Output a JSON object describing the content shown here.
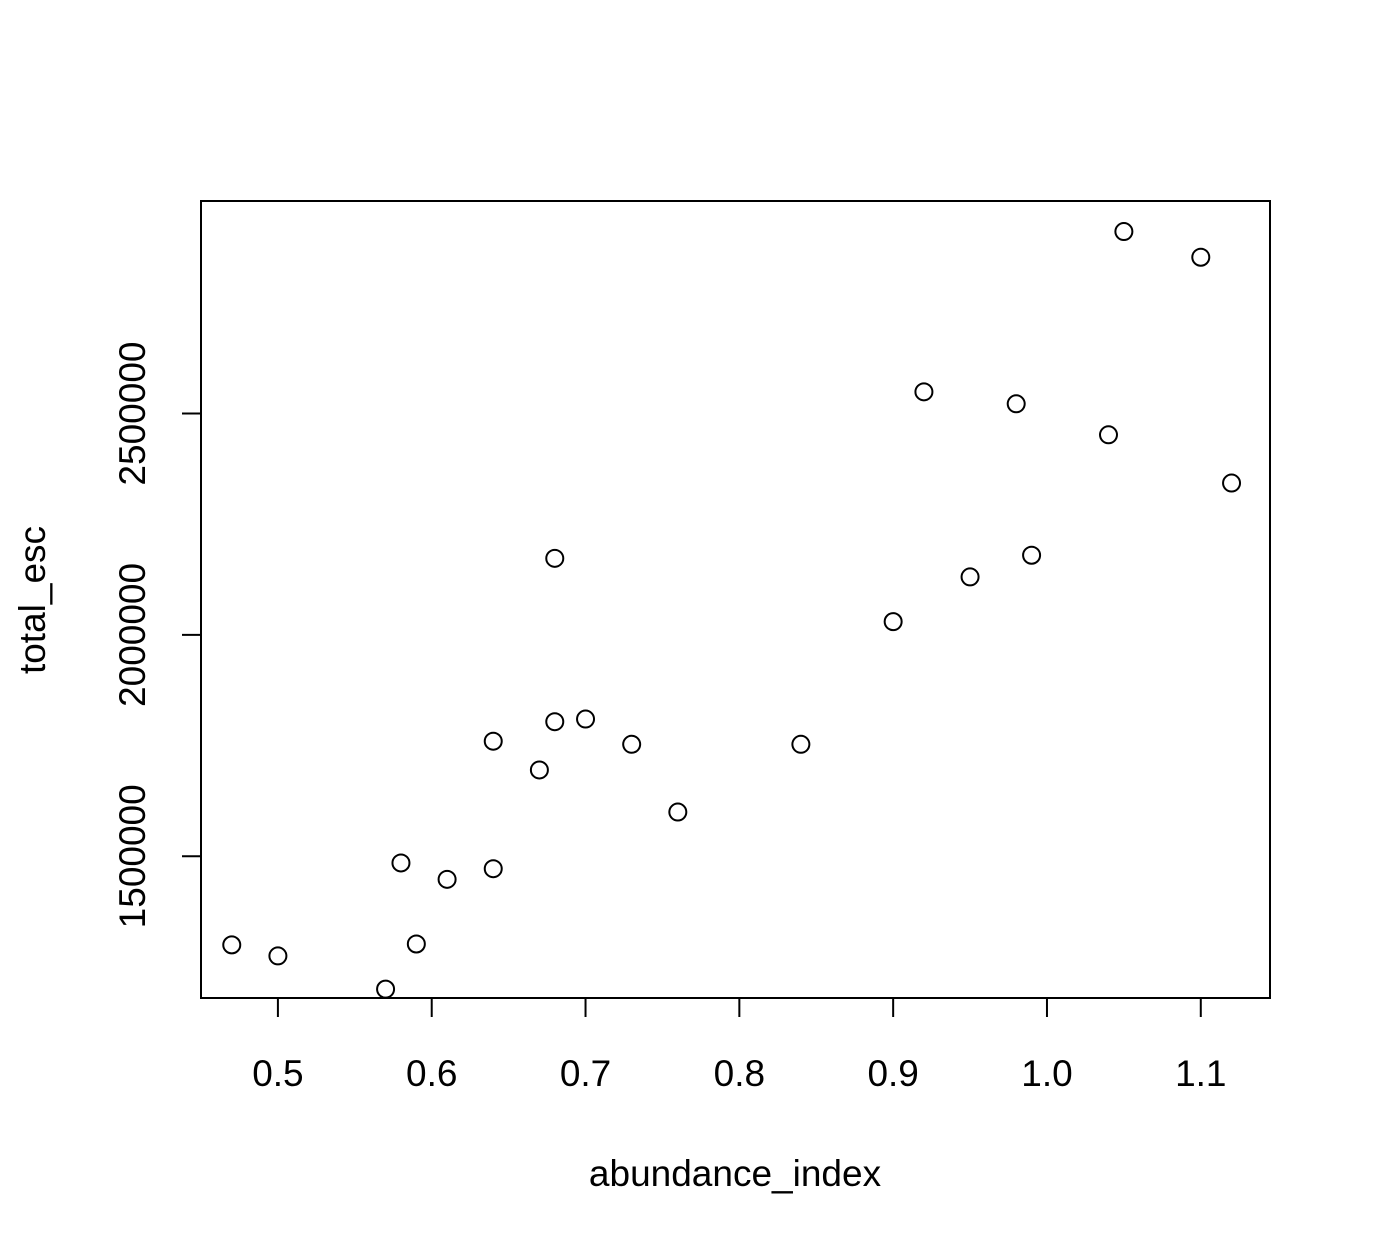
{
  "chart_data": {
    "type": "scatter",
    "title": "",
    "xlabel": "abundance_index",
    "ylabel": "total_esc",
    "xlim": [
      0.45,
      1.145
    ],
    "ylim": [
      1180000,
      2980000
    ],
    "x_ticks": [
      0.5,
      0.6,
      0.7,
      0.8,
      0.9,
      1.0,
      1.1
    ],
    "x_tick_labels": [
      "0.5",
      "0.6",
      "0.7",
      "0.8",
      "0.9",
      "1.0",
      "1.1"
    ],
    "y_ticks": [
      1500000,
      2000000,
      2500000
    ],
    "y_tick_labels": [
      "1500000",
      "2000000",
      "2500000"
    ],
    "grid": false,
    "legend": "none",
    "marker": "open-circle",
    "series": [
      {
        "x": [
          0.47,
          0.5,
          0.57,
          0.58,
          0.59,
          0.61,
          0.64,
          0.64,
          0.67,
          0.68,
          0.68,
          0.7,
          0.73,
          0.76,
          0.84,
          0.9,
          0.92,
          0.95,
          0.98,
          0.99,
          1.04,
          1.05,
          1.1,
          1.12
        ],
        "y": [
          1300000,
          1275000,
          1200000,
          1485000,
          1302000,
          1448000,
          1472000,
          1760000,
          1695000,
          1804000,
          2173000,
          1810000,
          1753000,
          1600000,
          1753000,
          2030000,
          2549000,
          2131000,
          2522000,
          2180000,
          2452000,
          2911000,
          2853000,
          2343000
        ]
      }
    ]
  }
}
